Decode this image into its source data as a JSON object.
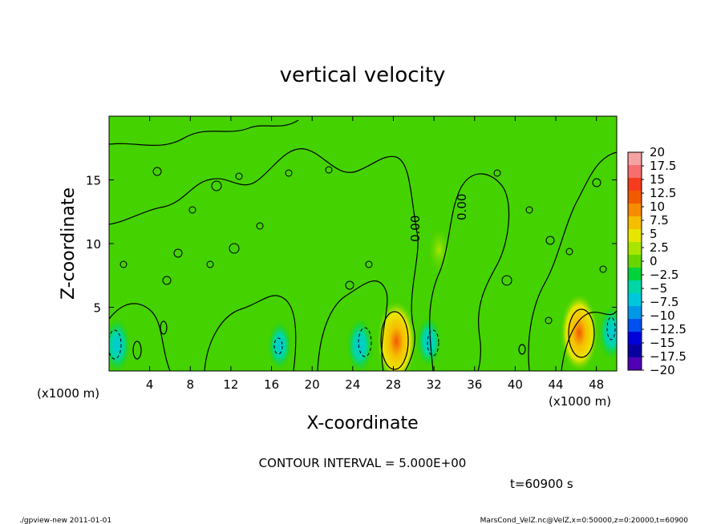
{
  "chart_data": {
    "type": "heatmap",
    "title": "vertical velocity",
    "xlabel": "X-coordinate",
    "ylabel": "Z-coordinate",
    "x_unit_left": "(x1000 m)",
    "x_unit_right": "(x1000 m)",
    "xlim": [
      0,
      50
    ],
    "ylim": [
      0,
      20
    ],
    "x_ticks": [
      4,
      8,
      12,
      16,
      20,
      24,
      28,
      32,
      36,
      40,
      44,
      48
    ],
    "x_tick_labels": [
      "4",
      "8",
      "12",
      "16",
      "20",
      "24",
      "28",
      "32",
      "36",
      "40",
      "44",
      "48"
    ],
    "y_ticks": [
      5,
      10,
      15
    ],
    "y_tick_labels": [
      "5",
      "10",
      "15"
    ],
    "contour_label": "0.00",
    "contour_interval_text": "CONTOUR INTERVAL = 5.000E+00",
    "time_text": "t=60900 s",
    "colorbar": {
      "levels": [
        20,
        17.5,
        15,
        12.5,
        10,
        7.5,
        5,
        2.5,
        0,
        -2.5,
        -5,
        -7.5,
        -10,
        -12.5,
        -15,
        -17.5,
        -20
      ],
      "labels": [
        "20",
        "17.5",
        "15",
        "12.5",
        "10",
        "7.5",
        "5",
        "2.5",
        "0",
        "−2.5",
        "−5",
        "−7.5",
        "−10",
        "−12.5",
        "−15",
        "−17.5",
        "−20"
      ],
      "colors": [
        "#f6a2a2",
        "#f66e6e",
        "#f63c1e",
        "#f25a00",
        "#f68c00",
        "#f6be00",
        "#e8e600",
        "#a8e600",
        "#66d700",
        "#00d23c",
        "#00d6a6",
        "#00c8dc",
        "#0098e6",
        "#0050f0",
        "#0000d8",
        "#0a00a0",
        "#5000b4"
      ]
    },
    "features": [
      {
        "kind": "updraft",
        "x": 28.3,
        "z": 2.3,
        "peak": 12.0
      },
      {
        "kind": "updraft",
        "x": 46.3,
        "z": 3.0,
        "peak": 11.0
      },
      {
        "kind": "updraft",
        "x": 32.5,
        "z": 9.5,
        "peak": 3.0
      },
      {
        "kind": "downdraft",
        "x": 24.7,
        "z": 2.0,
        "peak": -5.0
      },
      {
        "kind": "downdraft",
        "x": 31.5,
        "z": 2.3,
        "peak": -4.0
      },
      {
        "kind": "downdraft",
        "x": 0.8,
        "z": 2.0,
        "peak": -5.0
      },
      {
        "kind": "downdraft",
        "x": 49.5,
        "z": 3.0,
        "peak": -5.0
      },
      {
        "kind": "downdraft",
        "x": 16.8,
        "z": 2.0,
        "peak": -3.5
      }
    ]
  },
  "footer": {
    "left": "./gpview-new  2011-01-01",
    "right": "MarsCond_VelZ.nc@VelZ,x=0:50000,z=0:20000,t=60900"
  }
}
